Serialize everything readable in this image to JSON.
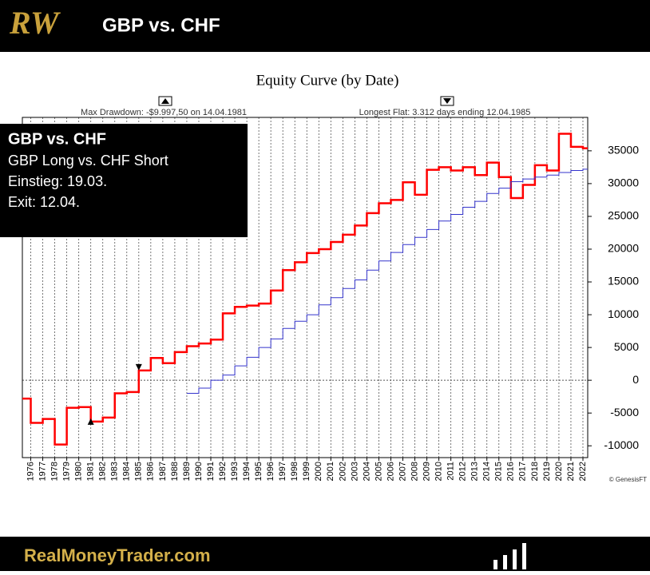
{
  "header": {
    "logo": "RW",
    "title": "GBP vs. CHF"
  },
  "overlay": {
    "title": "GBP vs. CHF",
    "lines": [
      "GBP Long vs. CHF Short",
      "Einstieg: 19.03.",
      "Exit: 12.04."
    ]
  },
  "footer": {
    "site": "RealMoneyTrader.com"
  },
  "chart_data": {
    "type": "step-line",
    "title": "Equity Curve (by Date)",
    "annotations": [
      "Max Drawdown: -$9.997,50 on 14.04.1981",
      "Longest Flat: 3.312 days ending 12.04.1985",
      "© GenesisFT"
    ],
    "xlim": [
      1975.3,
      2022.4
    ],
    "ylim": [
      -11800,
      40100
    ],
    "xticks": [
      1976,
      1977,
      1978,
      1979,
      1980,
      1981,
      1982,
      1983,
      1984,
      1985,
      1986,
      1987,
      1988,
      1989,
      1990,
      1991,
      1992,
      1993,
      1994,
      1995,
      1996,
      1997,
      1998,
      1999,
      2000,
      2001,
      2002,
      2003,
      2004,
      2005,
      2006,
      2007,
      2008,
      2009,
      2010,
      2011,
      2012,
      2013,
      2014,
      2015,
      2016,
      2017,
      2018,
      2019,
      2020,
      2021,
      2022
    ],
    "yticks": [
      -10000,
      -5000,
      0,
      5000,
      10000,
      15000,
      20000,
      25000,
      30000,
      35000
    ],
    "series": [
      {
        "color": "#ff0000",
        "x": [
          1975,
          1976,
          1977,
          1978,
          1979,
          1980,
          1981,
          1982,
          1983,
          1984,
          1985,
          1986,
          1987,
          1988,
          1989,
          1990,
          1991,
          1992,
          1993,
          1994,
          1995,
          1996,
          1997,
          1998,
          1999,
          2000,
          2001,
          2002,
          2003,
          2004,
          2005,
          2006,
          2007,
          2008,
          2009,
          2010,
          2011,
          2012,
          2013,
          2014,
          2015,
          2016,
          2017,
          2018,
          2019,
          2020,
          2021,
          2022
        ],
        "values": [
          -2800,
          -6500,
          -5900,
          -9800,
          -4200,
          -4100,
          -6300,
          -5700,
          -2000,
          -1800,
          1500,
          3400,
          2600,
          4300,
          5200,
          5600,
          6200,
          10200,
          11200,
          11400,
          11700,
          13700,
          16800,
          18000,
          19400,
          20000,
          21100,
          22200,
          23600,
          25500,
          27000,
          27500,
          30200,
          28300,
          32100,
          32500,
          32000,
          32500,
          31300,
          33200,
          31000,
          27800,
          29800,
          32800,
          32000,
          37600,
          35600,
          35400
        ]
      },
      {
        "color": "#3333cc",
        "x": [
          1989,
          1990,
          1991,
          1992,
          1993,
          1994,
          1995,
          1996,
          1997,
          1998,
          1999,
          2000,
          2001,
          2002,
          2003,
          2004,
          2005,
          2006,
          2007,
          2008,
          2009,
          2010,
          2011,
          2012,
          2013,
          2014,
          2015,
          2016,
          2017,
          2018,
          2019,
          2020,
          2021,
          2022
        ],
        "values": [
          -2000,
          -1200,
          0,
          800,
          2200,
          3500,
          5000,
          6300,
          7900,
          9000,
          10000,
          11500,
          12600,
          14000,
          15300,
          16800,
          18200,
          19500,
          20700,
          21800,
          23000,
          24300,
          25300,
          26400,
          27300,
          28500,
          29300,
          30300,
          30700,
          31000,
          31300,
          31700,
          32000,
          32200
        ]
      }
    ]
  }
}
